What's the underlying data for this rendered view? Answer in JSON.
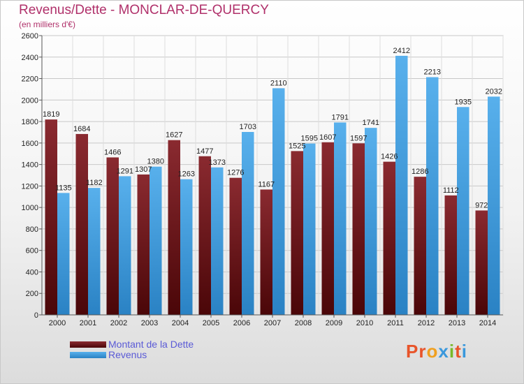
{
  "header": {
    "title": "Revenus/Dette - MONCLAR-DE-QUERCY",
    "subtitle": "(en milliers d'€)"
  },
  "legend": {
    "dette_label": "Montant de la Dette",
    "revenus_label": "Revenus"
  },
  "logo": {
    "text": "Proxiti"
  },
  "colors": {
    "dette": "#6e1a1f",
    "revenus": "#3a98dc",
    "title": "#b0306a",
    "legend_text": "#5a5ad6"
  },
  "chart_data": {
    "type": "bar",
    "title": "Revenus/Dette - MONCLAR-DE-QUERCY",
    "subtitle": "(en milliers d'€)",
    "categories": [
      "2000",
      "2001",
      "2002",
      "2003",
      "2004",
      "2005",
      "2006",
      "2007",
      "2008",
      "2009",
      "2010",
      "2011",
      "2012",
      "2013",
      "2014"
    ],
    "series": [
      {
        "name": "Montant de la Dette",
        "values": [
          1819,
          1684,
          1466,
          1307,
          1627,
          1477,
          1276,
          1167,
          1525,
          1607,
          1597,
          1426,
          1286,
          1112,
          972
        ],
        "labels": [
          "1819",
          "1684",
          "1466",
          "1307",
          "1627",
          "1477",
          "1276",
          "1167",
          "1525",
          "1607",
          "1597",
          "1426",
          "1286",
          "1112",
          "972"
        ]
      },
      {
        "name": "Revenus",
        "values": [
          1135,
          1182,
          1291,
          1380,
          1263,
          1373,
          1703,
          2110,
          1595,
          1791,
          1741,
          2412,
          2213,
          1935,
          2032
        ],
        "labels": [
          "1135",
          "1182",
          "1291",
          "1380",
          "1263",
          "1373",
          "1703",
          "2110",
          "1595",
          "1791",
          "1741",
          "2412",
          "2213",
          "1935",
          "2032"
        ]
      }
    ],
    "ylim": [
      0,
      2600
    ],
    "yticks": [
      0,
      200,
      400,
      600,
      800,
      1000,
      1200,
      1400,
      1600,
      1800,
      2000,
      2200,
      2400,
      2600
    ],
    "grid": true,
    "legend_position": "bottom-left"
  }
}
